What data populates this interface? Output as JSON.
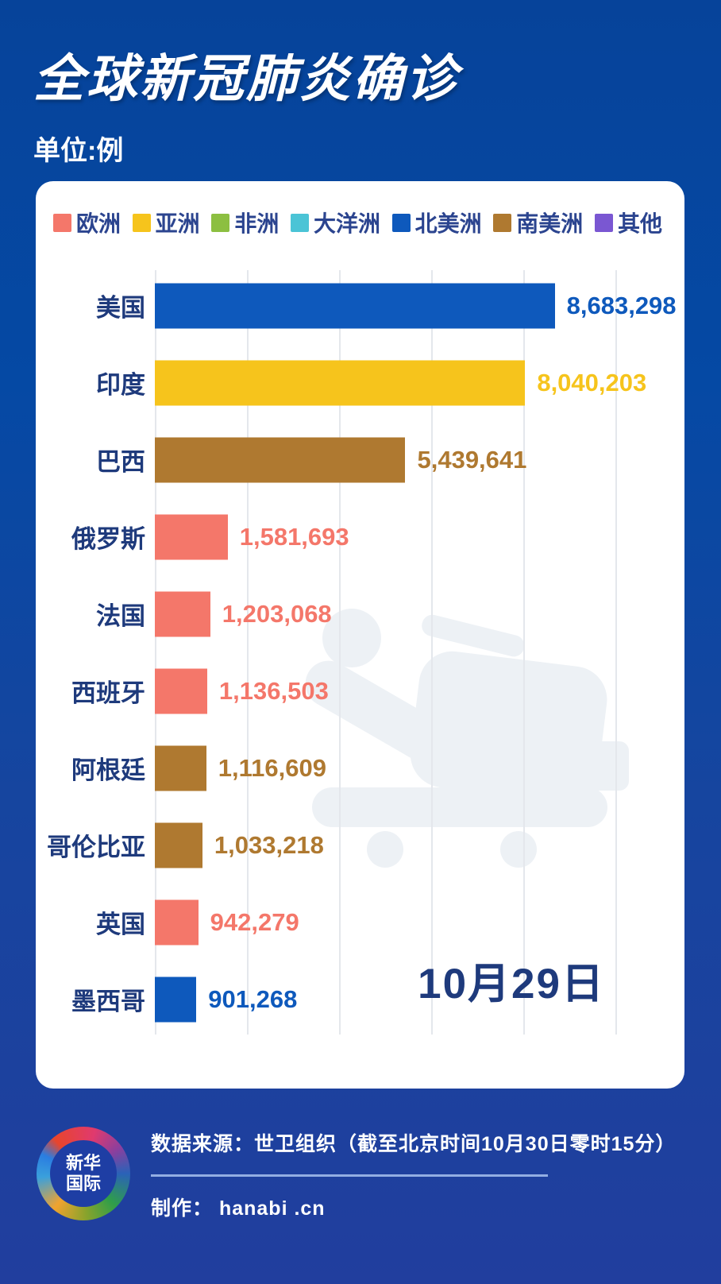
{
  "header": {
    "title": "全球新冠肺炎确诊",
    "subtitle": "单位:例"
  },
  "legend": [
    {
      "label": "欧洲",
      "color": "#F4776A"
    },
    {
      "label": "亚洲",
      "color": "#F6C41C"
    },
    {
      "label": "非洲",
      "color": "#8CBF41"
    },
    {
      "label": "大洋洲",
      "color": "#4BC4D6"
    },
    {
      "label": "北美洲",
      "color": "#0E59BC"
    },
    {
      "label": "南美洲",
      "color": "#AF7930"
    },
    {
      "label": "其他",
      "color": "#7A57D2"
    }
  ],
  "chart_data": {
    "type": "bar",
    "orientation": "horizontal",
    "title": "全球新冠肺炎确诊",
    "unit_label": "单位:例",
    "categories": [
      "美国",
      "印度",
      "巴西",
      "俄罗斯",
      "法国",
      "西班牙",
      "阿根廷",
      "哥伦比亚",
      "英国",
      "墨西哥"
    ],
    "values": [
      8683298,
      8040203,
      5439641,
      1581693,
      1203068,
      1136503,
      1116609,
      1033218,
      942279,
      901268
    ],
    "value_labels": [
      "8,683,298",
      "8,040,203",
      "5,439,641",
      "1,581,693",
      "1,203,068",
      "1,136,503",
      "1,116,609",
      "1,033,218",
      "942,279",
      "901,268"
    ],
    "continents": [
      "北美洲",
      "亚洲",
      "南美洲",
      "欧洲",
      "欧洲",
      "欧洲",
      "南美洲",
      "南美洲",
      "欧洲",
      "北美洲"
    ],
    "bar_colors": [
      "#0E59BC",
      "#F6C41C",
      "#AF7930",
      "#F4776A",
      "#F4776A",
      "#F4776A",
      "#AF7930",
      "#AF7930",
      "#F4776A",
      "#0E59BC"
    ],
    "xlim": [
      0,
      10000000
    ],
    "gridline_interval": 2000000,
    "grid": true,
    "legend_position": "top",
    "date_annotation": "10月29日"
  },
  "watermark": {
    "icon": "hospital-bed-icon",
    "color": "#edf1f5"
  },
  "footer": {
    "logo_text": "新华\n国际",
    "source": "数据来源：世卫组织（截至北京时间10月30日零时15分）",
    "maker": "制作： hanabi .cn"
  },
  "colors": {
    "background_top": "#06439a",
    "background_bottom": "#213e9e",
    "card": "#ffffff",
    "label_navy": "#1e3a7c",
    "gridline": "#e4e7ec",
    "footer_divider": "#93aee3"
  }
}
